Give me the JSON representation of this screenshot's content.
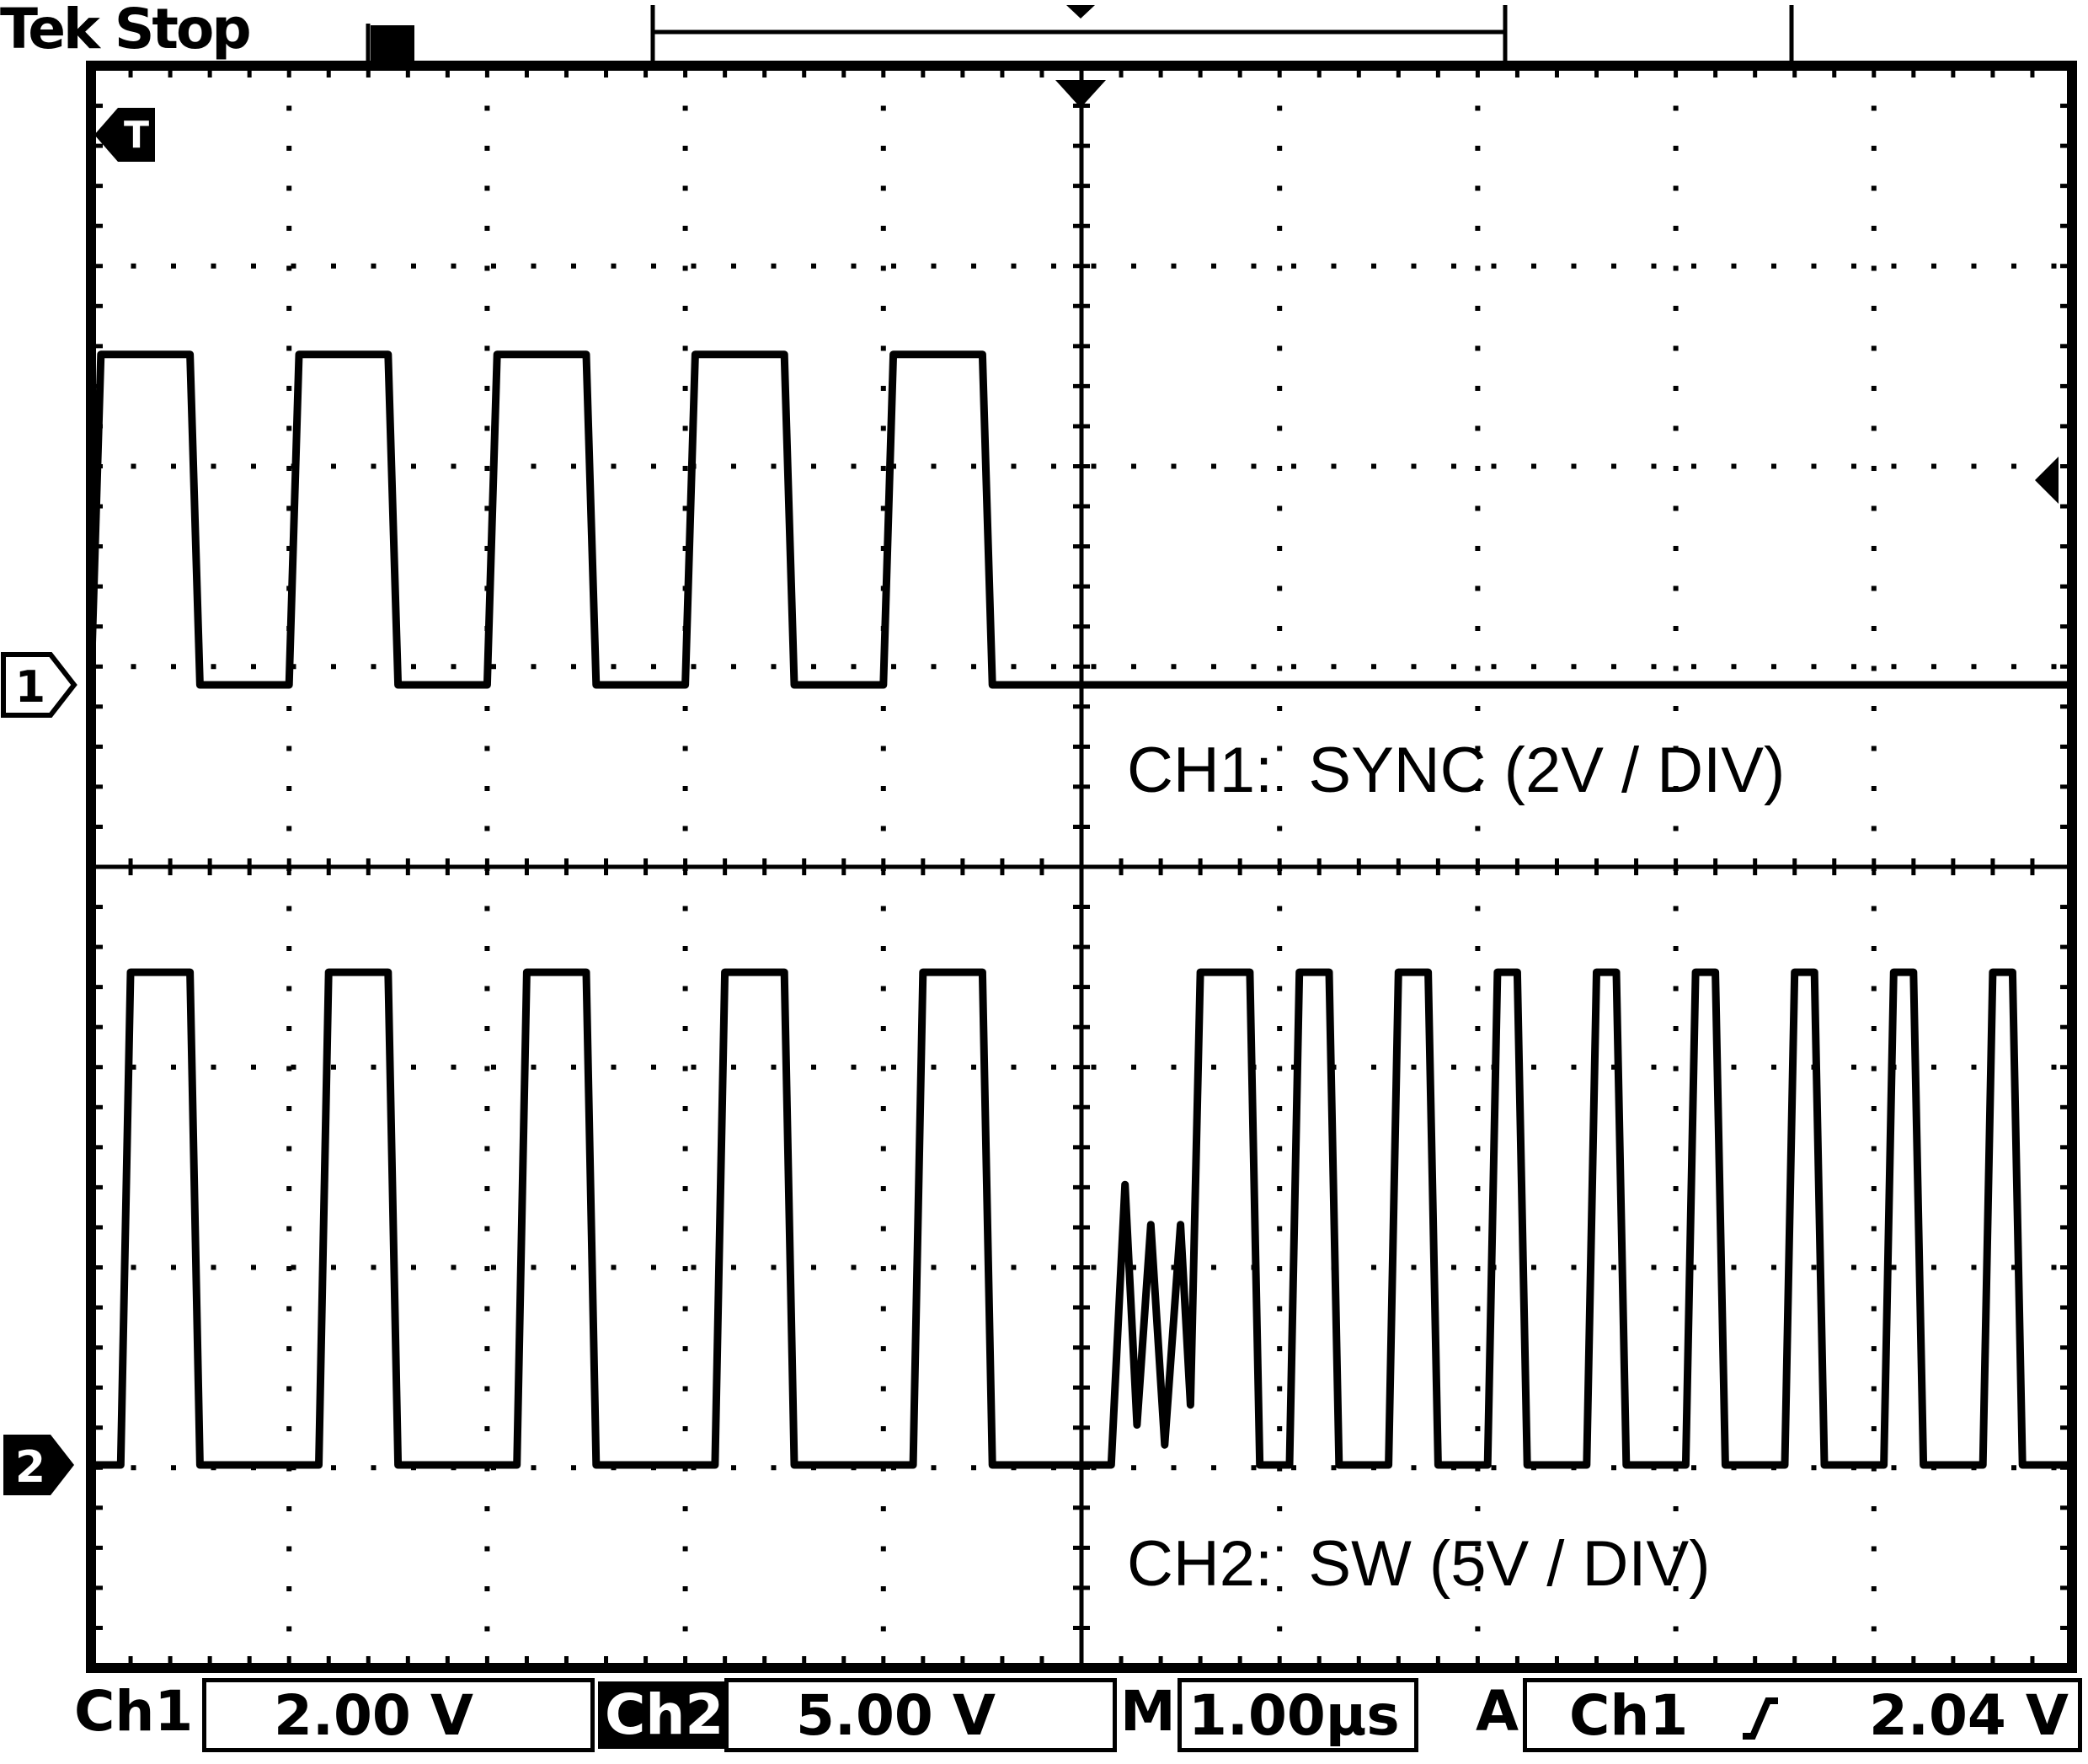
{
  "header": {
    "brand_status": "Tek Stop"
  },
  "annotations": {
    "ch1": "CH1:  SYNC (2V / DIV)",
    "ch2": "CH2:  SW (5V / DIV)"
  },
  "markers": {
    "trigger": "T",
    "ch1": "1",
    "ch2": "2"
  },
  "status_bar": {
    "ch1_label": "Ch1",
    "ch1_scale": "2.00 V",
    "ch2_label": "Ch2",
    "ch2_scale": "5.00 V",
    "timebase_label": "M",
    "timebase": "1.00µs",
    "trigger_label": "A",
    "trigger_source": "Ch1",
    "trigger_slope": "rising",
    "trigger_level": "2.04 V"
  },
  "colors": {
    "trace": "#000000",
    "background": "#ffffff"
  },
  "chart_data": {
    "type": "line",
    "grid": true,
    "x_divisions": 10,
    "y_divisions": 8,
    "xlim_us": [
      -5,
      5
    ],
    "series": [
      {
        "name": "CH1:  SYNC (2V / DIV)",
        "unit": "V",
        "points_us_v": [
          [
            -5.0,
            0.0
          ],
          [
            -4.95,
            3.3
          ],
          [
            -4.5,
            3.3
          ],
          [
            -4.45,
            0.0
          ],
          [
            -4.0,
            0.0
          ],
          [
            -3.95,
            3.3
          ],
          [
            -3.5,
            3.3
          ],
          [
            -3.45,
            0.0
          ],
          [
            -3.0,
            0.0
          ],
          [
            -2.95,
            3.3
          ],
          [
            -2.5,
            3.3
          ],
          [
            -2.45,
            0.0
          ],
          [
            -2.0,
            0.0
          ],
          [
            -1.95,
            3.3
          ],
          [
            -1.5,
            3.3
          ],
          [
            -1.45,
            0.0
          ],
          [
            -1.0,
            0.0
          ],
          [
            -0.95,
            3.3
          ],
          [
            -0.5,
            3.3
          ],
          [
            -0.45,
            0.0
          ],
          [
            5.0,
            0.0
          ]
        ]
      },
      {
        "name": "CH2:  SW (5V / DIV)",
        "unit": "V",
        "points_us_v": [
          [
            -5.0,
            0.0
          ],
          [
            -4.85,
            0.0
          ],
          [
            -4.8,
            12.3
          ],
          [
            -4.5,
            12.3
          ],
          [
            -4.45,
            0.0
          ],
          [
            -3.85,
            0.0
          ],
          [
            -3.8,
            12.3
          ],
          [
            -3.5,
            12.3
          ],
          [
            -3.45,
            0.0
          ],
          [
            -2.85,
            0.0
          ],
          [
            -2.8,
            12.3
          ],
          [
            -2.5,
            12.3
          ],
          [
            -2.45,
            0.0
          ],
          [
            -1.85,
            0.0
          ],
          [
            -1.8,
            12.3
          ],
          [
            -1.5,
            12.3
          ],
          [
            -1.45,
            0.0
          ],
          [
            -0.85,
            0.0
          ],
          [
            -0.8,
            12.3
          ],
          [
            -0.5,
            12.3
          ],
          [
            -0.45,
            0.0
          ],
          [
            0.15,
            0.0
          ],
          [
            0.22,
            7.0
          ],
          [
            0.28,
            1.0
          ],
          [
            0.35,
            6.0
          ],
          [
            0.42,
            0.5
          ],
          [
            0.5,
            6.0
          ],
          [
            0.55,
            1.5
          ],
          [
            0.6,
            12.3
          ],
          [
            0.85,
            12.3
          ],
          [
            0.9,
            0.0
          ],
          [
            1.05,
            0.0
          ],
          [
            1.1,
            12.3
          ],
          [
            1.25,
            12.3
          ],
          [
            1.3,
            0.0
          ],
          [
            1.55,
            0.0
          ],
          [
            1.6,
            12.3
          ],
          [
            1.75,
            12.3
          ],
          [
            1.8,
            0.0
          ],
          [
            2.05,
            0.0
          ],
          [
            2.1,
            12.3
          ],
          [
            2.2,
            12.3
          ],
          [
            2.25,
            0.0
          ],
          [
            2.55,
            0.0
          ],
          [
            2.6,
            12.3
          ],
          [
            2.7,
            12.3
          ],
          [
            2.75,
            0.0
          ],
          [
            3.05,
            0.0
          ],
          [
            3.1,
            12.3
          ],
          [
            3.2,
            12.3
          ],
          [
            3.25,
            0.0
          ],
          [
            3.55,
            0.0
          ],
          [
            3.6,
            12.3
          ],
          [
            3.7,
            12.3
          ],
          [
            3.75,
            0.0
          ],
          [
            4.05,
            0.0
          ],
          [
            4.1,
            12.3
          ],
          [
            4.2,
            12.3
          ],
          [
            4.25,
            0.0
          ],
          [
            4.55,
            0.0
          ],
          [
            4.6,
            12.3
          ],
          [
            4.7,
            12.3
          ],
          [
            4.75,
            0.0
          ],
          [
            5.0,
            0.0
          ]
        ]
      }
    ]
  }
}
